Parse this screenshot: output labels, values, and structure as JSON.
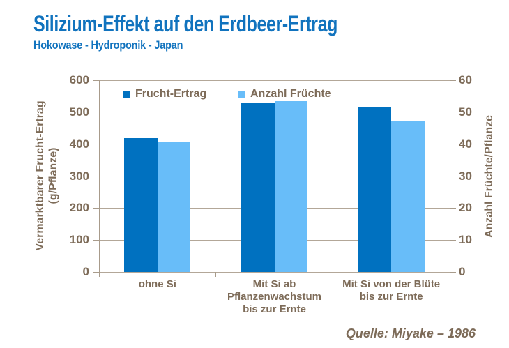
{
  "title": "Silizium-Effekt auf den Erdbeer-Ertrag",
  "subtitle": "Hokowase - Hydroponik - Japan",
  "source": "Quelle:  Miyake – 1986",
  "colors": {
    "title_blue": "#1173BE",
    "text_brown": "#7D6B58",
    "gridline": "#B3A798",
    "series_dark_blue": "#0071C0",
    "series_light_blue": "#68BDF9"
  },
  "chart_data": {
    "type": "bar",
    "title": "Silizium-Effekt auf den Erdbeer-Ertrag",
    "subtitle": "Hokowase - Hydroponik - Japan",
    "categories": [
      "ohne Si",
      "Mit Si ab\nPflanzenwachstum\nbis zur Ernte",
      "Mit Si von der Blüte\nbis zur Ernte"
    ],
    "series": [
      {
        "name": "Frucht-Ertrag",
        "axis": "left",
        "color": "#0071C0",
        "values": [
          420,
          527,
          518
        ]
      },
      {
        "name": "Anzahl Früchte",
        "axis": "right",
        "color": "#68BDF9",
        "values": [
          40.7,
          53.5,
          47.3
        ]
      }
    ],
    "left_axis": {
      "label_lines": [
        "Vermarktbarer Frucht-Ertrag",
        "(g/Pflanze)"
      ],
      "min": 0,
      "max": 600,
      "step": 100,
      "ticks": [
        0,
        100,
        200,
        300,
        400,
        500,
        600
      ]
    },
    "right_axis": {
      "label": "Anzahl Früchte/Pflanze",
      "min": 0,
      "max": 60,
      "step": 10,
      "ticks": [
        0,
        10,
        20,
        30,
        40,
        50,
        60
      ]
    },
    "grid": true,
    "legend_position": "top-inside",
    "source": "Quelle:  Miyake – 1986"
  }
}
